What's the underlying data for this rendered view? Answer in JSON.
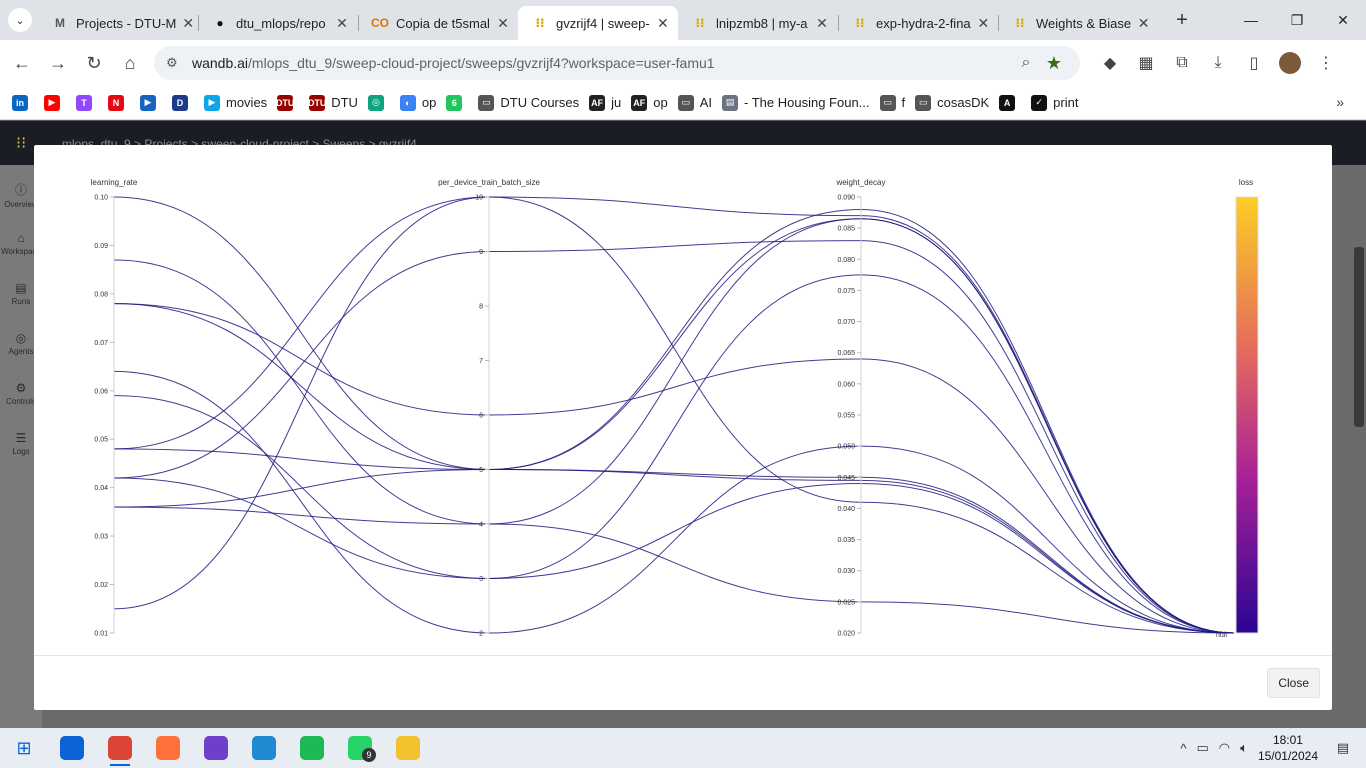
{
  "browser": {
    "tabs": [
      {
        "title": "Projects - DTU-M",
        "favicon": "M",
        "color": "#555"
      },
      {
        "title": "dtu_mlops/repo",
        "favicon": "●",
        "color": "#111"
      },
      {
        "title": "Copia de t5smal",
        "favicon": "CO",
        "color": "#e37400"
      },
      {
        "title": "gvzrijf4 | sweep-",
        "favicon": "⁝⁝",
        "color": "#d7a400",
        "active": true
      },
      {
        "title": "lnipzmb8 | my-a",
        "favicon": "⁝⁝",
        "color": "#d7a400"
      },
      {
        "title": "exp-hydra-2-fina",
        "favicon": "⁝⁝",
        "color": "#d7a400"
      },
      {
        "title": "Weights & Biase",
        "favicon": "⁝⁝",
        "color": "#d7a400"
      }
    ],
    "url_host": "wandb.ai",
    "url_path": "/mlops_dtu_9/sweep-cloud-project/sweeps/gvzrijf4?workspace=user-famu1",
    "bookmarks": [
      {
        "label": "",
        "icon": "in",
        "color": "#0a66c2"
      },
      {
        "label": "",
        "icon": "▶",
        "color": "#ff0000"
      },
      {
        "label": "",
        "icon": "T",
        "color": "#9146ff"
      },
      {
        "label": "",
        "icon": "N",
        "color": "#e50914"
      },
      {
        "label": "",
        "icon": "▶",
        "color": "#1565c0"
      },
      {
        "label": "",
        "icon": "D",
        "color": "#1e3a8a"
      },
      {
        "label": "movies",
        "icon": "▶",
        "color": "#0ea5e9"
      },
      {
        "label": "",
        "icon": "DTU",
        "color": "#990000"
      },
      {
        "label": "DTU",
        "icon": "DTU",
        "color": "#990000"
      },
      {
        "label": "",
        "icon": "◎",
        "color": "#10a37f"
      },
      {
        "label": "op",
        "icon": "◐",
        "color": "#3b82f6"
      },
      {
        "label": "",
        "icon": "6",
        "color": "#22c55e"
      },
      {
        "label": "DTU Courses",
        "icon": "▭",
        "color": "#555"
      },
      {
        "label": "ju",
        "icon": "AF",
        "color": "#222"
      },
      {
        "label": "op",
        "icon": "AF",
        "color": "#222"
      },
      {
        "label": "AI",
        "icon": "▭",
        "color": "#555"
      },
      {
        "label": "- The Housing Foun...",
        "icon": "▤",
        "color": "#6b7280"
      },
      {
        "label": "f",
        "icon": "▭",
        "color": "#555"
      },
      {
        "label": "cosasDK",
        "icon": "▭",
        "color": "#555"
      },
      {
        "label": "",
        "icon": "A",
        "color": "#111"
      },
      {
        "label": "print",
        "icon": "✓",
        "color": "#111"
      }
    ]
  },
  "app": {
    "crumbs": "mlops_dtu_9  >  Projects  >  sweep-cloud-project  >  Sweeps  >  gvzrijf4",
    "sidebar": [
      "Overview",
      "Workspace",
      "Runs",
      "Agents",
      "Controls",
      "Logs"
    ]
  },
  "modal": {
    "close_label": "Close"
  },
  "chart_data": {
    "type": "parallel-coordinates",
    "axes": [
      {
        "name": "learning_rate",
        "ticks": [
          "0.10",
          "0.09",
          "0.08",
          "0.07",
          "0.06",
          "0.05",
          "0.04",
          "0.03",
          "0.02",
          "0.01"
        ],
        "range": [
          0.01,
          0.1
        ]
      },
      {
        "name": "per_device_train_batch_size",
        "ticks": [
          "10",
          "9",
          "8",
          "7",
          "6",
          "5",
          "4",
          "3",
          "2"
        ],
        "range": [
          2,
          10
        ]
      },
      {
        "name": "weight_decay",
        "ticks": [
          "0.090",
          "0.085",
          "0.080",
          "0.075",
          "0.070",
          "0.065",
          "0.060",
          "0.055",
          "0.050",
          "0.045",
          "0.040",
          "0.035",
          "0.030",
          "0.025",
          "0.020"
        ],
        "range": [
          0.02,
          0.09
        ]
      },
      {
        "name": "loss",
        "ticks": [
          "null"
        ],
        "colorbar": true
      }
    ],
    "runs": [
      {
        "learning_rate": 0.1,
        "per_device_train_batch_size": 5,
        "weight_decay": 0.088
      },
      {
        "learning_rate": 0.087,
        "per_device_train_batch_size": 4,
        "weight_decay": 0.0865
      },
      {
        "learning_rate": 0.078,
        "per_device_train_batch_size": 5,
        "weight_decay": 0.045
      },
      {
        "learning_rate": 0.078,
        "per_device_train_batch_size": 6,
        "weight_decay": 0.064
      },
      {
        "learning_rate": 0.064,
        "per_device_train_batch_size": 2,
        "weight_decay": 0.05
      },
      {
        "learning_rate": 0.059,
        "per_device_train_batch_size": 3,
        "weight_decay": 0.044
      },
      {
        "learning_rate": 0.048,
        "per_device_train_batch_size": 10,
        "weight_decay": 0.041
      },
      {
        "learning_rate": 0.048,
        "per_device_train_batch_size": 5,
        "weight_decay": 0.0865
      },
      {
        "learning_rate": 0.042,
        "per_device_train_batch_size": 9,
        "weight_decay": 0.083
      },
      {
        "learning_rate": 0.042,
        "per_device_train_batch_size": 3,
        "weight_decay": 0.0775
      },
      {
        "learning_rate": 0.036,
        "per_device_train_batch_size": 5,
        "weight_decay": 0.0445
      },
      {
        "learning_rate": 0.036,
        "per_device_train_batch_size": 4,
        "weight_decay": 0.025
      },
      {
        "learning_rate": 0.015,
        "per_device_train_batch_size": 10,
        "weight_decay": 0.087
      }
    ]
  },
  "taskbar": {
    "apps": [
      {
        "name": "outlook",
        "color": "#0a64d8"
      },
      {
        "name": "chrome",
        "color": "#db4437",
        "active": true
      },
      {
        "name": "firefox",
        "color": "#ff7139"
      },
      {
        "name": "github-desktop",
        "color": "#6e40c9"
      },
      {
        "name": "vscode",
        "color": "#1f8ad2"
      },
      {
        "name": "spotify",
        "color": "#1db954"
      },
      {
        "name": "whatsapp",
        "color": "#25d366",
        "badge": "9"
      },
      {
        "name": "file-explorer",
        "color": "#f2c12e"
      }
    ],
    "time": "18:01",
    "date": "15/01/2024",
    "notifications": "1"
  }
}
